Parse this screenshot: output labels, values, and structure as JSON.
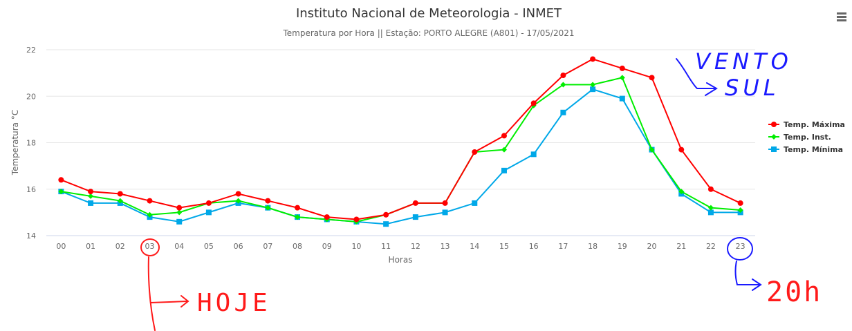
{
  "chart_data": {
    "type": "line",
    "title": "Instituto Nacional de Meteorologia - INMET",
    "subtitle": "Temperatura por Hora || Estação: PORTO ALEGRE (A801) - 17/05/2021",
    "xlabel": "Horas",
    "ylabel": "Temperatura °C",
    "categories": [
      "00",
      "01",
      "02",
      "03",
      "04",
      "05",
      "06",
      "07",
      "08",
      "09",
      "10",
      "11",
      "12",
      "13",
      "14",
      "15",
      "16",
      "17",
      "18",
      "19",
      "20",
      "21",
      "22",
      "23"
    ],
    "ylim": [
      14,
      22
    ],
    "yticks": [
      14,
      16,
      18,
      20,
      22
    ],
    "grid": true,
    "legend_position": "right",
    "series": [
      {
        "name": "Temp. Máxima",
        "color": "#ff0000",
        "marker": "circle",
        "values": [
          16.4,
          15.9,
          15.8,
          15.5,
          15.2,
          15.4,
          15.8,
          15.5,
          15.2,
          14.8,
          14.7,
          14.9,
          15.4,
          15.4,
          17.6,
          18.3,
          19.7,
          20.9,
          21.6,
          21.2,
          20.8,
          17.7,
          16.0,
          15.4
        ]
      },
      {
        "name": "Temp. Inst.",
        "color": "#00ee00",
        "marker": "diamond",
        "values": [
          15.9,
          15.7,
          15.5,
          14.9,
          15.0,
          15.4,
          15.5,
          15.2,
          14.8,
          14.7,
          14.6,
          14.9,
          15.4,
          15.4,
          17.6,
          17.7,
          19.6,
          20.5,
          20.5,
          20.8,
          17.7,
          15.9,
          15.2,
          15.1
        ]
      },
      {
        "name": "Temp. Mínima",
        "color": "#00a8e8",
        "marker": "square",
        "values": [
          15.9,
          15.4,
          15.4,
          14.8,
          14.6,
          15.0,
          15.4,
          15.2,
          14.8,
          14.7,
          14.6,
          14.5,
          14.8,
          15.0,
          15.4,
          16.8,
          17.5,
          19.3,
          20.3,
          19.9,
          17.7,
          15.8,
          15.0,
          15.0
        ]
      }
    ]
  },
  "annotations": {
    "hoje_text": "HOJE",
    "vento_text": "VENTO",
    "sul_text": "SUL",
    "time_text": "20h",
    "hoje_color": "#ff1a1a",
    "vento_color": "#1a1aff"
  },
  "menu_icon": "hamburger-menu-icon"
}
